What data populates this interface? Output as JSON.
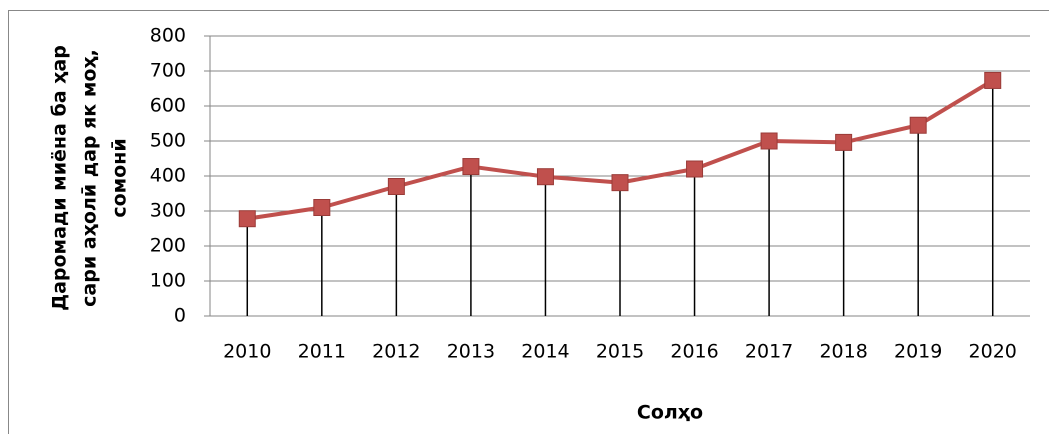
{
  "chart_data": {
    "type": "line",
    "xlabel": "Солҳо",
    "ylabel": [
      "Даромади миёна ба ҳар",
      "сари аҳолӣ дар як моҳ,",
      "сомонӣ"
    ],
    "categories": [
      "2010",
      "2011",
      "2012",
      "2013",
      "2014",
      "2015",
      "2016",
      "2017",
      "2018",
      "2019",
      "2020"
    ],
    "values": [
      278,
      310,
      370,
      427,
      398,
      381,
      420,
      500,
      496,
      545,
      673
    ],
    "color": "#c0504d",
    "drop_lines": true,
    "ylim": [
      0,
      800
    ],
    "yticks": [
      0,
      100,
      200,
      300,
      400,
      500,
      600,
      700,
      800
    ],
    "grid": true
  }
}
